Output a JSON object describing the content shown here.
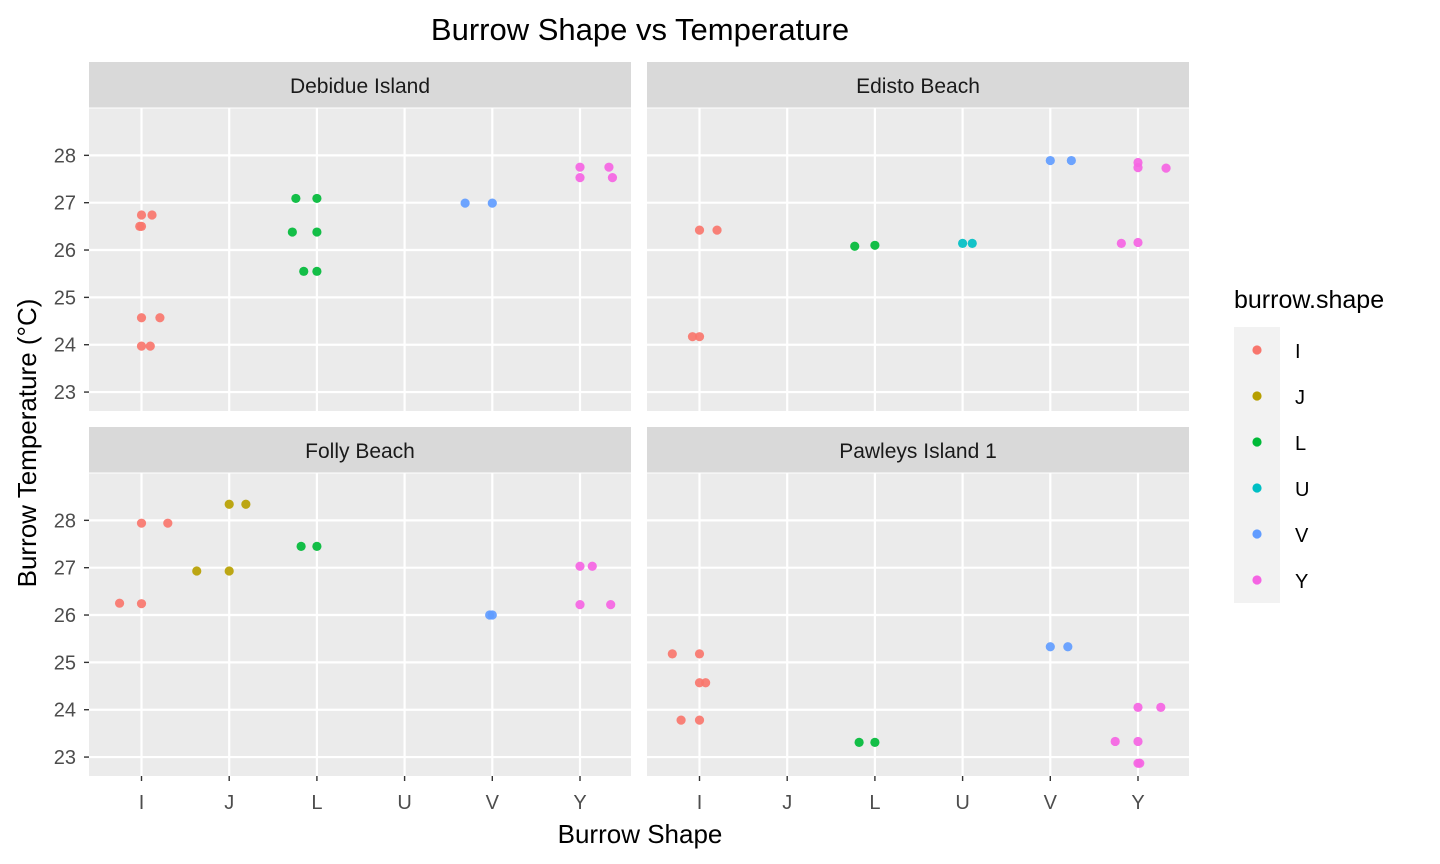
{
  "chart_data": {
    "type": "scatter",
    "title": "Burrow Shape vs Temperature",
    "xlabel": "Burrow Shape",
    "ylabel": "Burrow Temperature (°C)",
    "categories": [
      "I",
      "J",
      "L",
      "U",
      "V",
      "Y"
    ],
    "y_ticks": [
      23,
      24,
      25,
      26,
      27,
      28
    ],
    "ylim": [
      22.6,
      29.0
    ],
    "grid": true,
    "legend": {
      "title": "burrow.shape",
      "placement": "right",
      "entries": [
        {
          "label": "I",
          "color": "#F8766D"
        },
        {
          "label": "J",
          "color": "#B79F00"
        },
        {
          "label": "L",
          "color": "#00BA38"
        },
        {
          "label": "U",
          "color": "#00BFC4"
        },
        {
          "label": "V",
          "color": "#619CFF"
        },
        {
          "label": "Y",
          "color": "#F564E3"
        }
      ]
    },
    "panels": [
      {
        "name": "Debidue Island",
        "points": [
          {
            "shape": "I",
            "x": 1.0,
            "y": 26.74
          },
          {
            "shape": "I",
            "x": 1.12,
            "y": 26.74
          },
          {
            "shape": "I",
            "x": 0.98,
            "y": 26.5
          },
          {
            "shape": "I",
            "x": 1.0,
            "y": 26.5
          },
          {
            "shape": "I",
            "x": 1.0,
            "y": 24.57
          },
          {
            "shape": "I",
            "x": 1.21,
            "y": 24.57
          },
          {
            "shape": "I",
            "x": 1.0,
            "y": 23.97
          },
          {
            "shape": "I",
            "x": 1.1,
            "y": 23.97
          },
          {
            "shape": "L",
            "x": 2.76,
            "y": 27.09
          },
          {
            "shape": "L",
            "x": 3.0,
            "y": 27.09
          },
          {
            "shape": "L",
            "x": 2.72,
            "y": 26.38
          },
          {
            "shape": "L",
            "x": 3.0,
            "y": 26.38
          },
          {
            "shape": "L",
            "x": 2.85,
            "y": 25.55
          },
          {
            "shape": "L",
            "x": 3.0,
            "y": 25.55
          },
          {
            "shape": "V",
            "x": 4.69,
            "y": 26.99
          },
          {
            "shape": "V",
            "x": 5.0,
            "y": 26.99
          },
          {
            "shape": "Y",
            "x": 6.0,
            "y": 27.75
          },
          {
            "shape": "Y",
            "x": 6.33,
            "y": 27.75
          },
          {
            "shape": "Y",
            "x": 6.0,
            "y": 27.53
          },
          {
            "shape": "Y",
            "x": 6.37,
            "y": 27.53
          }
        ]
      },
      {
        "name": "Edisto Beach",
        "points": [
          {
            "shape": "I",
            "x": 1.0,
            "y": 26.42
          },
          {
            "shape": "I",
            "x": 1.2,
            "y": 26.42
          },
          {
            "shape": "I",
            "x": 0.92,
            "y": 24.17
          },
          {
            "shape": "I",
            "x": 1.0,
            "y": 24.17
          },
          {
            "shape": "L",
            "x": 2.77,
            "y": 26.08
          },
          {
            "shape": "L",
            "x": 3.0,
            "y": 26.1
          },
          {
            "shape": "U",
            "x": 4.0,
            "y": 26.14
          },
          {
            "shape": "U",
            "x": 4.11,
            "y": 26.14
          },
          {
            "shape": "V",
            "x": 5.0,
            "y": 27.89
          },
          {
            "shape": "V",
            "x": 5.24,
            "y": 27.89
          },
          {
            "shape": "Y",
            "x": 6.0,
            "y": 27.85
          },
          {
            "shape": "Y",
            "x": 6.0,
            "y": 27.74
          },
          {
            "shape": "Y",
            "x": 6.32,
            "y": 27.73
          },
          {
            "shape": "Y",
            "x": 5.81,
            "y": 26.14
          },
          {
            "shape": "Y",
            "x": 6.0,
            "y": 26.16
          }
        ]
      },
      {
        "name": "Folly Beach",
        "points": [
          {
            "shape": "I",
            "x": 1.0,
            "y": 27.94
          },
          {
            "shape": "I",
            "x": 1.3,
            "y": 27.94
          },
          {
            "shape": "I",
            "x": 0.75,
            "y": 26.25
          },
          {
            "shape": "I",
            "x": 1.0,
            "y": 26.24
          },
          {
            "shape": "J",
            "x": 2.0,
            "y": 28.34
          },
          {
            "shape": "J",
            "x": 2.19,
            "y": 28.34
          },
          {
            "shape": "J",
            "x": 1.63,
            "y": 26.93
          },
          {
            "shape": "J",
            "x": 2.0,
            "y": 26.93
          },
          {
            "shape": "L",
            "x": 2.82,
            "y": 27.45
          },
          {
            "shape": "L",
            "x": 3.0,
            "y": 27.45
          },
          {
            "shape": "V",
            "x": 4.97,
            "y": 26.0
          },
          {
            "shape": "V",
            "x": 5.0,
            "y": 26.0
          },
          {
            "shape": "Y",
            "x": 6.0,
            "y": 27.03
          },
          {
            "shape": "Y",
            "x": 6.14,
            "y": 27.03
          },
          {
            "shape": "Y",
            "x": 6.0,
            "y": 26.22
          },
          {
            "shape": "Y",
            "x": 6.35,
            "y": 26.22
          }
        ]
      },
      {
        "name": "Pawleys Island 1",
        "points": [
          {
            "shape": "I",
            "x": 0.69,
            "y": 25.18
          },
          {
            "shape": "I",
            "x": 1.0,
            "y": 25.18
          },
          {
            "shape": "I",
            "x": 1.0,
            "y": 24.57
          },
          {
            "shape": "I",
            "x": 1.07,
            "y": 24.57
          },
          {
            "shape": "I",
            "x": 0.79,
            "y": 23.78
          },
          {
            "shape": "I",
            "x": 1.0,
            "y": 23.78
          },
          {
            "shape": "L",
            "x": 2.82,
            "y": 23.31
          },
          {
            "shape": "L",
            "x": 3.0,
            "y": 23.31
          },
          {
            "shape": "V",
            "x": 5.0,
            "y": 25.33
          },
          {
            "shape": "V",
            "x": 5.2,
            "y": 25.33
          },
          {
            "shape": "Y",
            "x": 6.0,
            "y": 24.05
          },
          {
            "shape": "Y",
            "x": 6.26,
            "y": 24.05
          },
          {
            "shape": "Y",
            "x": 5.74,
            "y": 23.33
          },
          {
            "shape": "Y",
            "x": 6.0,
            "y": 23.33
          },
          {
            "shape": "Y",
            "x": 6.0,
            "y": 22.87
          },
          {
            "shape": "Y",
            "x": 6.02,
            "y": 22.87
          }
        ]
      }
    ]
  }
}
